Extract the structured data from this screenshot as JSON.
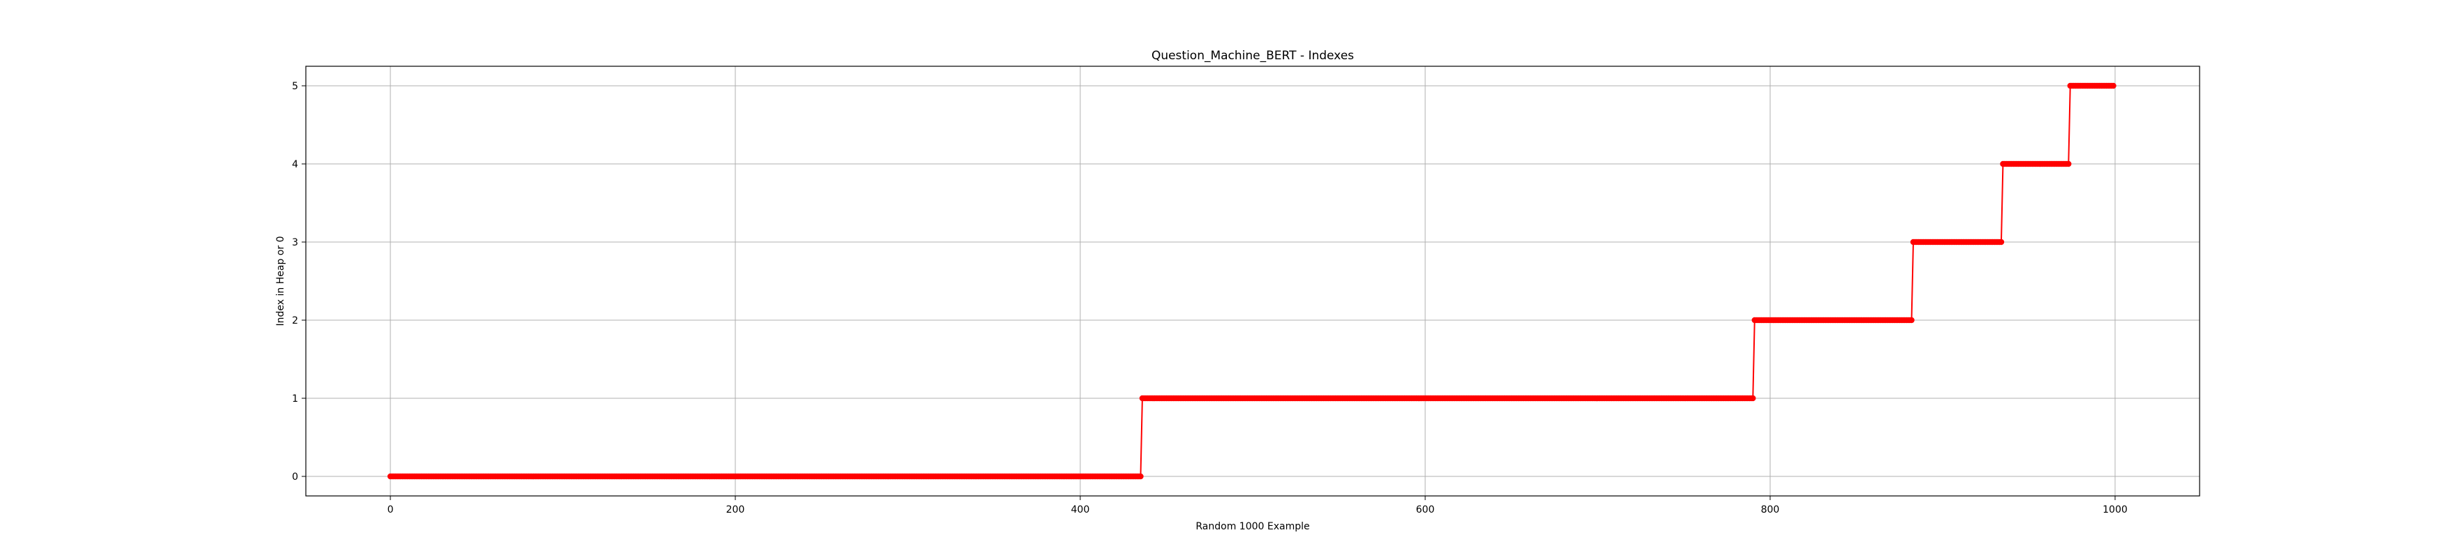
{
  "chart_data": {
    "type": "line",
    "title": "Question_Machine_BERT - Indexes",
    "xlabel": "Random 1000 Example",
    "ylabel": "Index in Heap or 0",
    "xlim": [
      -49,
      1049
    ],
    "ylim": [
      -0.25,
      5.25
    ],
    "xticks": [
      0,
      200,
      400,
      600,
      800,
      1000
    ],
    "yticks": [
      0,
      1,
      2,
      3,
      4,
      5
    ],
    "grid": true,
    "series": [
      {
        "color": "#ff0000",
        "marker": "circle",
        "segments": [
          {
            "x_start": 0,
            "x_end": 435,
            "y": 0
          },
          {
            "x_start": 436,
            "x_end": 790,
            "y": 1
          },
          {
            "x_start": 791,
            "x_end": 882,
            "y": 2
          },
          {
            "x_start": 883,
            "x_end": 934,
            "y": 3
          },
          {
            "x_start": 935,
            "x_end": 973,
            "y": 4
          },
          {
            "x_start": 974,
            "x_end": 999,
            "y": 5
          }
        ]
      }
    ]
  }
}
